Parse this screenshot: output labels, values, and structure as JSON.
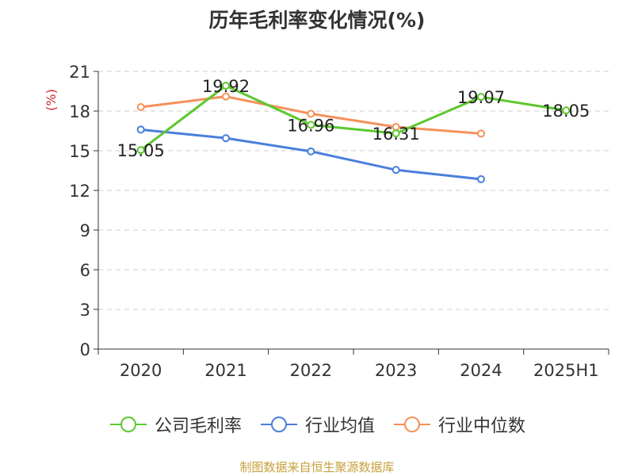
{
  "title": "历年毛利率变化情况(%)",
  "source": "制图数据来自恒生聚源数据库",
  "chart_data": {
    "type": "line",
    "title": "历年毛利率变化情况(%)",
    "ylabel": "(%)",
    "xlabel": "",
    "categories": [
      "2020",
      "2021",
      "2022",
      "2023",
      "2024",
      "2025H1"
    ],
    "ylim": [
      0,
      21
    ],
    "yticks": [
      0,
      3,
      6,
      9,
      12,
      15,
      18,
      21
    ],
    "grid": true,
    "legend_position": "bottom",
    "series": [
      {
        "name": "公司毛利率",
        "color": "#5cc82e",
        "values": [
          15.05,
          19.92,
          16.96,
          16.31,
          19.07,
          18.05
        ],
        "labels": [
          "15.05",
          "19.92",
          "16.96",
          "16.31",
          "19.07",
          "18.05"
        ],
        "show_labels": true
      },
      {
        "name": "行业均值",
        "color": "#4a7fdc",
        "values": [
          16.6,
          15.95,
          14.95,
          13.55,
          12.85,
          null
        ],
        "show_labels": false
      },
      {
        "name": "行业中位数",
        "color": "#f5915a",
        "values": [
          18.3,
          19.1,
          17.8,
          16.8,
          16.3,
          null
        ],
        "show_labels": false
      }
    ]
  }
}
